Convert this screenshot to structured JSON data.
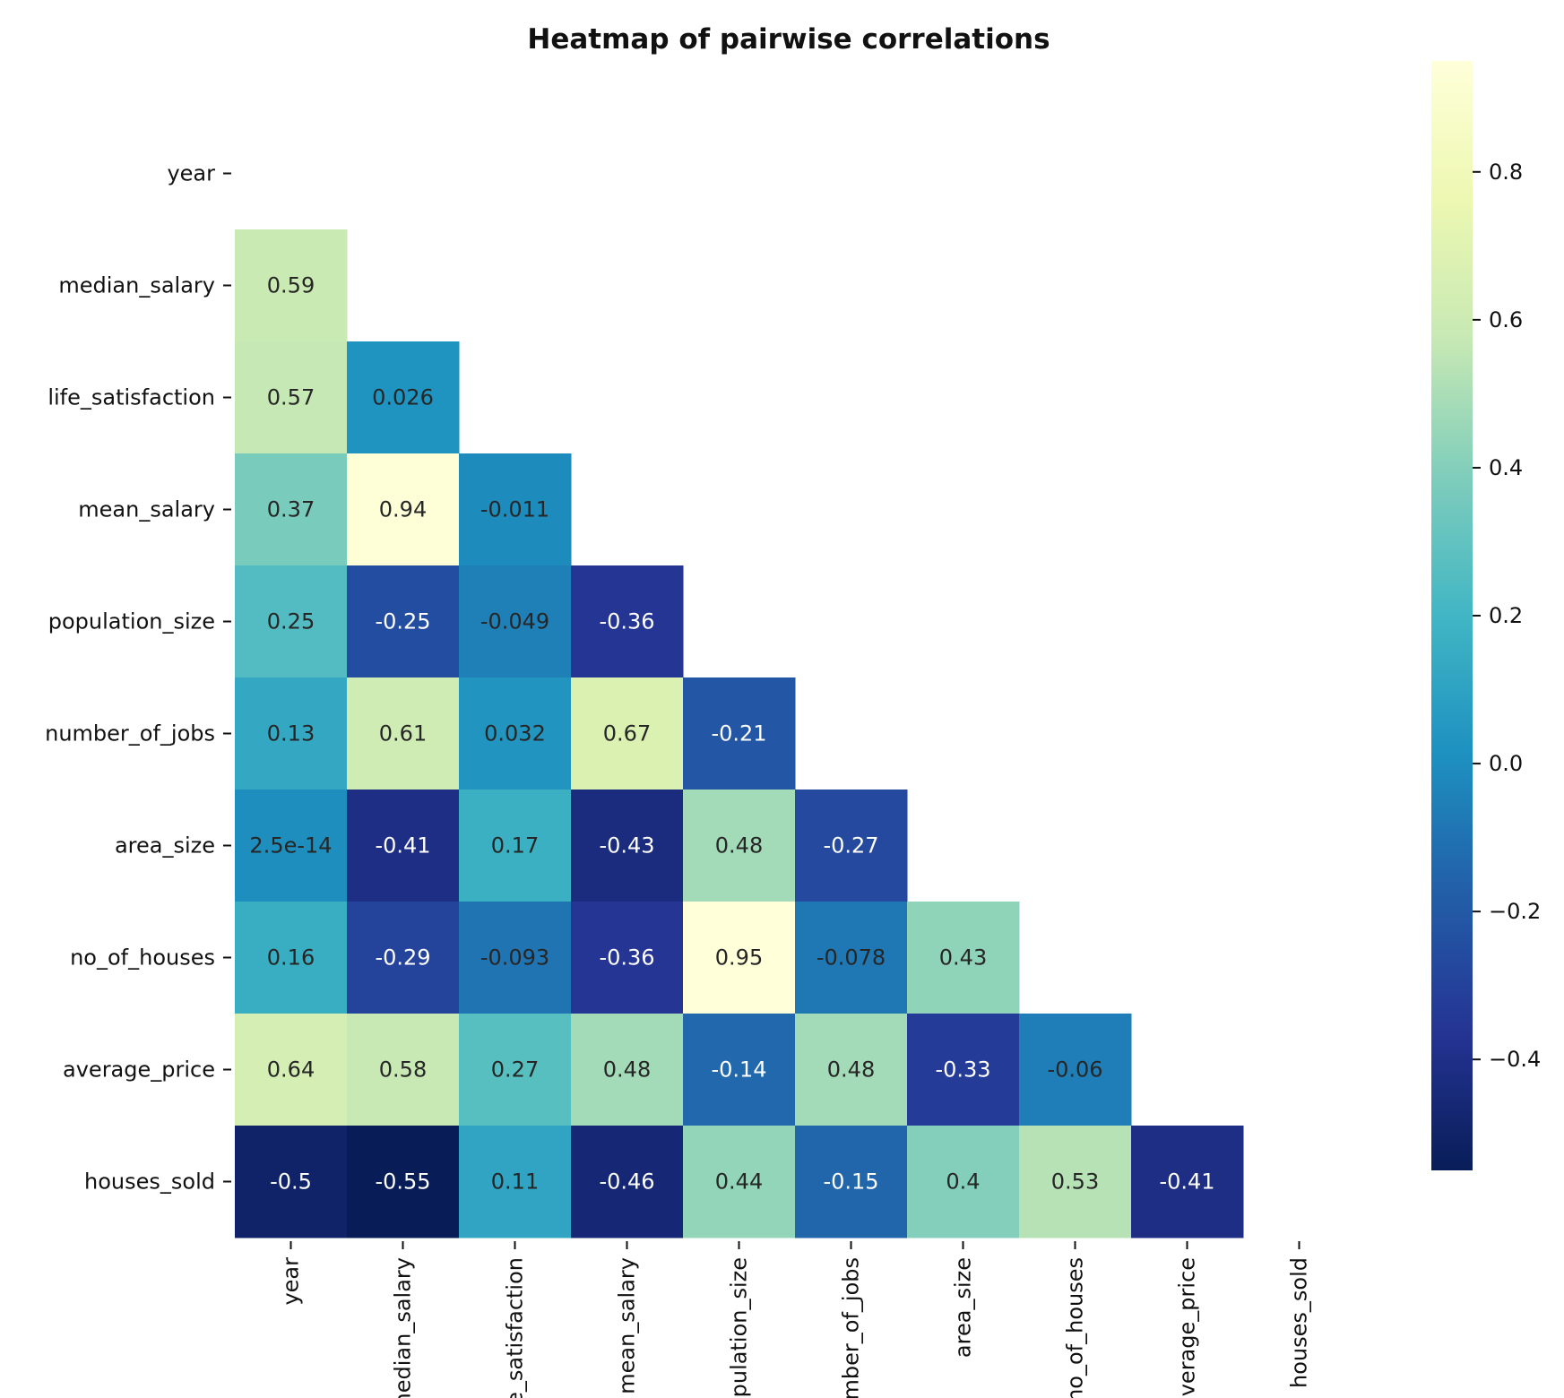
{
  "chart_data": {
    "type": "heatmap",
    "title": "Heatmap of pairwise correlations",
    "colormap": "YlGnBu",
    "mask": "upper-triangle-and-diagonal",
    "variables": [
      "year",
      "median_salary",
      "life_satisfaction",
      "mean_salary",
      "population_size",
      "number_of_jobs",
      "area_size",
      "no_of_houses",
      "average_price",
      "houses_sold"
    ],
    "cells": [
      {
        "row": 1,
        "col": 0,
        "value": 0.59,
        "label": "0.59"
      },
      {
        "row": 2,
        "col": 0,
        "value": 0.57,
        "label": "0.57"
      },
      {
        "row": 2,
        "col": 1,
        "value": 0.026,
        "label": "0.026"
      },
      {
        "row": 3,
        "col": 0,
        "value": 0.37,
        "label": "0.37"
      },
      {
        "row": 3,
        "col": 1,
        "value": 0.94,
        "label": "0.94"
      },
      {
        "row": 3,
        "col": 2,
        "value": -0.011,
        "label": "-0.011"
      },
      {
        "row": 4,
        "col": 0,
        "value": 0.25,
        "label": "0.25"
      },
      {
        "row": 4,
        "col": 1,
        "value": -0.25,
        "label": "-0.25"
      },
      {
        "row": 4,
        "col": 2,
        "value": -0.049,
        "label": "-0.049"
      },
      {
        "row": 4,
        "col": 3,
        "value": -0.36,
        "label": "-0.36"
      },
      {
        "row": 5,
        "col": 0,
        "value": 0.13,
        "label": "0.13"
      },
      {
        "row": 5,
        "col": 1,
        "value": 0.61,
        "label": "0.61"
      },
      {
        "row": 5,
        "col": 2,
        "value": 0.032,
        "label": "0.032"
      },
      {
        "row": 5,
        "col": 3,
        "value": 0.67,
        "label": "0.67"
      },
      {
        "row": 5,
        "col": 4,
        "value": -0.21,
        "label": "-0.21"
      },
      {
        "row": 6,
        "col": 0,
        "value": 2.5e-14,
        "label": "2.5e-14"
      },
      {
        "row": 6,
        "col": 1,
        "value": -0.41,
        "label": "-0.41"
      },
      {
        "row": 6,
        "col": 2,
        "value": 0.17,
        "label": "0.17"
      },
      {
        "row": 6,
        "col": 3,
        "value": -0.43,
        "label": "-0.43"
      },
      {
        "row": 6,
        "col": 4,
        "value": 0.48,
        "label": "0.48"
      },
      {
        "row": 6,
        "col": 5,
        "value": -0.27,
        "label": "-0.27"
      },
      {
        "row": 7,
        "col": 0,
        "value": 0.16,
        "label": "0.16"
      },
      {
        "row": 7,
        "col": 1,
        "value": -0.29,
        "label": "-0.29"
      },
      {
        "row": 7,
        "col": 2,
        "value": -0.093,
        "label": "-0.093"
      },
      {
        "row": 7,
        "col": 3,
        "value": -0.36,
        "label": "-0.36"
      },
      {
        "row": 7,
        "col": 4,
        "value": 0.95,
        "label": "0.95"
      },
      {
        "row": 7,
        "col": 5,
        "value": -0.078,
        "label": "-0.078"
      },
      {
        "row": 7,
        "col": 6,
        "value": 0.43,
        "label": "0.43"
      },
      {
        "row": 8,
        "col": 0,
        "value": 0.64,
        "label": "0.64"
      },
      {
        "row": 8,
        "col": 1,
        "value": 0.58,
        "label": "0.58"
      },
      {
        "row": 8,
        "col": 2,
        "value": 0.27,
        "label": "0.27"
      },
      {
        "row": 8,
        "col": 3,
        "value": 0.48,
        "label": "0.48"
      },
      {
        "row": 8,
        "col": 4,
        "value": -0.14,
        "label": "-0.14"
      },
      {
        "row": 8,
        "col": 5,
        "value": 0.48,
        "label": "0.48"
      },
      {
        "row": 8,
        "col": 6,
        "value": -0.33,
        "label": "-0.33"
      },
      {
        "row": 8,
        "col": 7,
        "value": -0.06,
        "label": "-0.06"
      },
      {
        "row": 9,
        "col": 0,
        "value": -0.5,
        "label": "-0.5"
      },
      {
        "row": 9,
        "col": 1,
        "value": -0.55,
        "label": "-0.55"
      },
      {
        "row": 9,
        "col": 2,
        "value": 0.11,
        "label": "0.11"
      },
      {
        "row": 9,
        "col": 3,
        "value": -0.46,
        "label": "-0.46"
      },
      {
        "row": 9,
        "col": 4,
        "value": 0.44,
        "label": "0.44"
      },
      {
        "row": 9,
        "col": 5,
        "value": -0.15,
        "label": "-0.15"
      },
      {
        "row": 9,
        "col": 6,
        "value": 0.4,
        "label": "0.4"
      },
      {
        "row": 9,
        "col": 7,
        "value": 0.53,
        "label": "0.53"
      },
      {
        "row": 9,
        "col": 8,
        "value": -0.41,
        "label": "-0.41"
      }
    ],
    "colorbar": {
      "vmin": -0.55,
      "vmax": 0.95,
      "ticks": [
        -0.4,
        -0.2,
        0.0,
        0.2,
        0.4,
        0.6,
        0.8
      ],
      "tick_labels": [
        "−0.4",
        "−0.2",
        "0.0",
        "0.2",
        "0.4",
        "0.6",
        "0.8"
      ]
    }
  }
}
